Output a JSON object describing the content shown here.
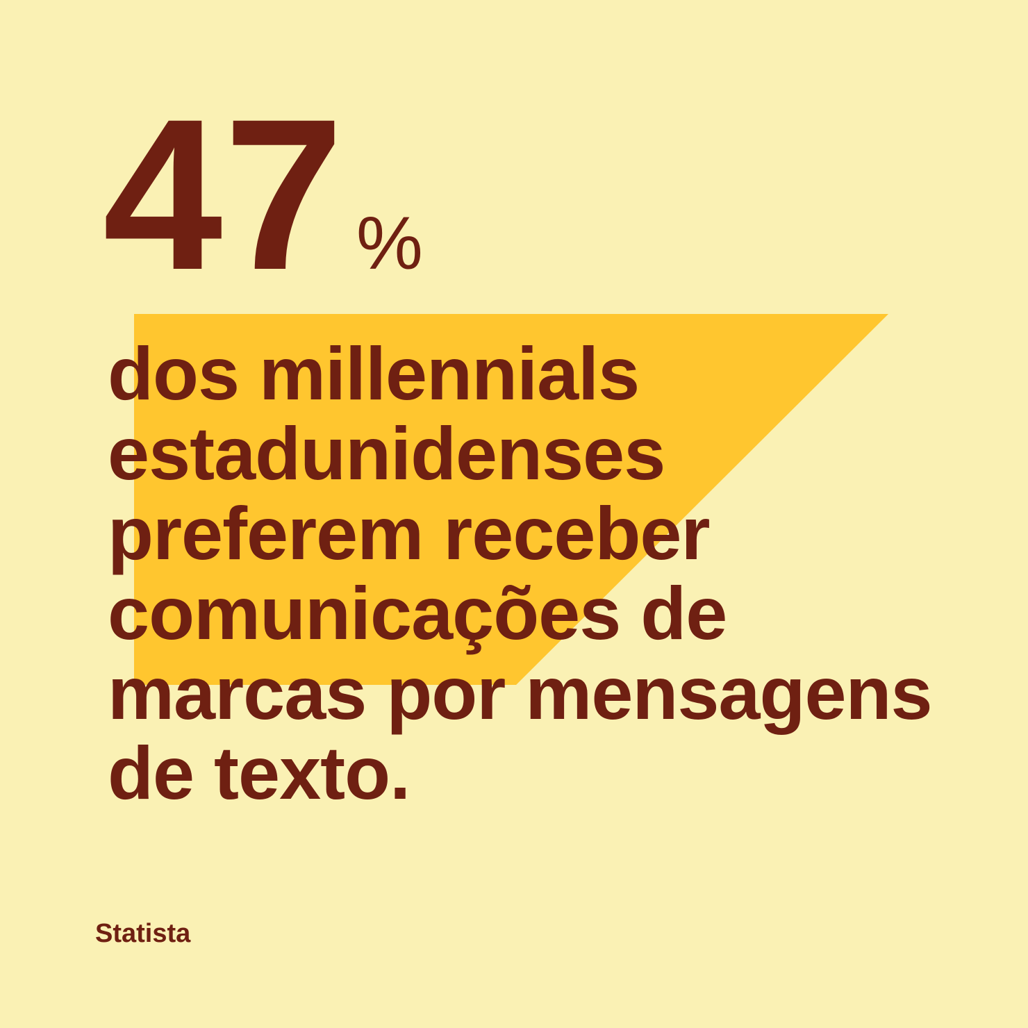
{
  "stat": {
    "value": "47",
    "unit": "%"
  },
  "statement": {
    "lines": [
      "dos millennials",
      "estadunidenses",
      "preferem receber",
      "comunicações de",
      "marcas por mensagens",
      "de texto."
    ]
  },
  "source": {
    "label": "Statista"
  },
  "colors": {
    "background": "#FAF1B4",
    "accent_shape": "#FFC62F",
    "text": "#6F2012"
  }
}
